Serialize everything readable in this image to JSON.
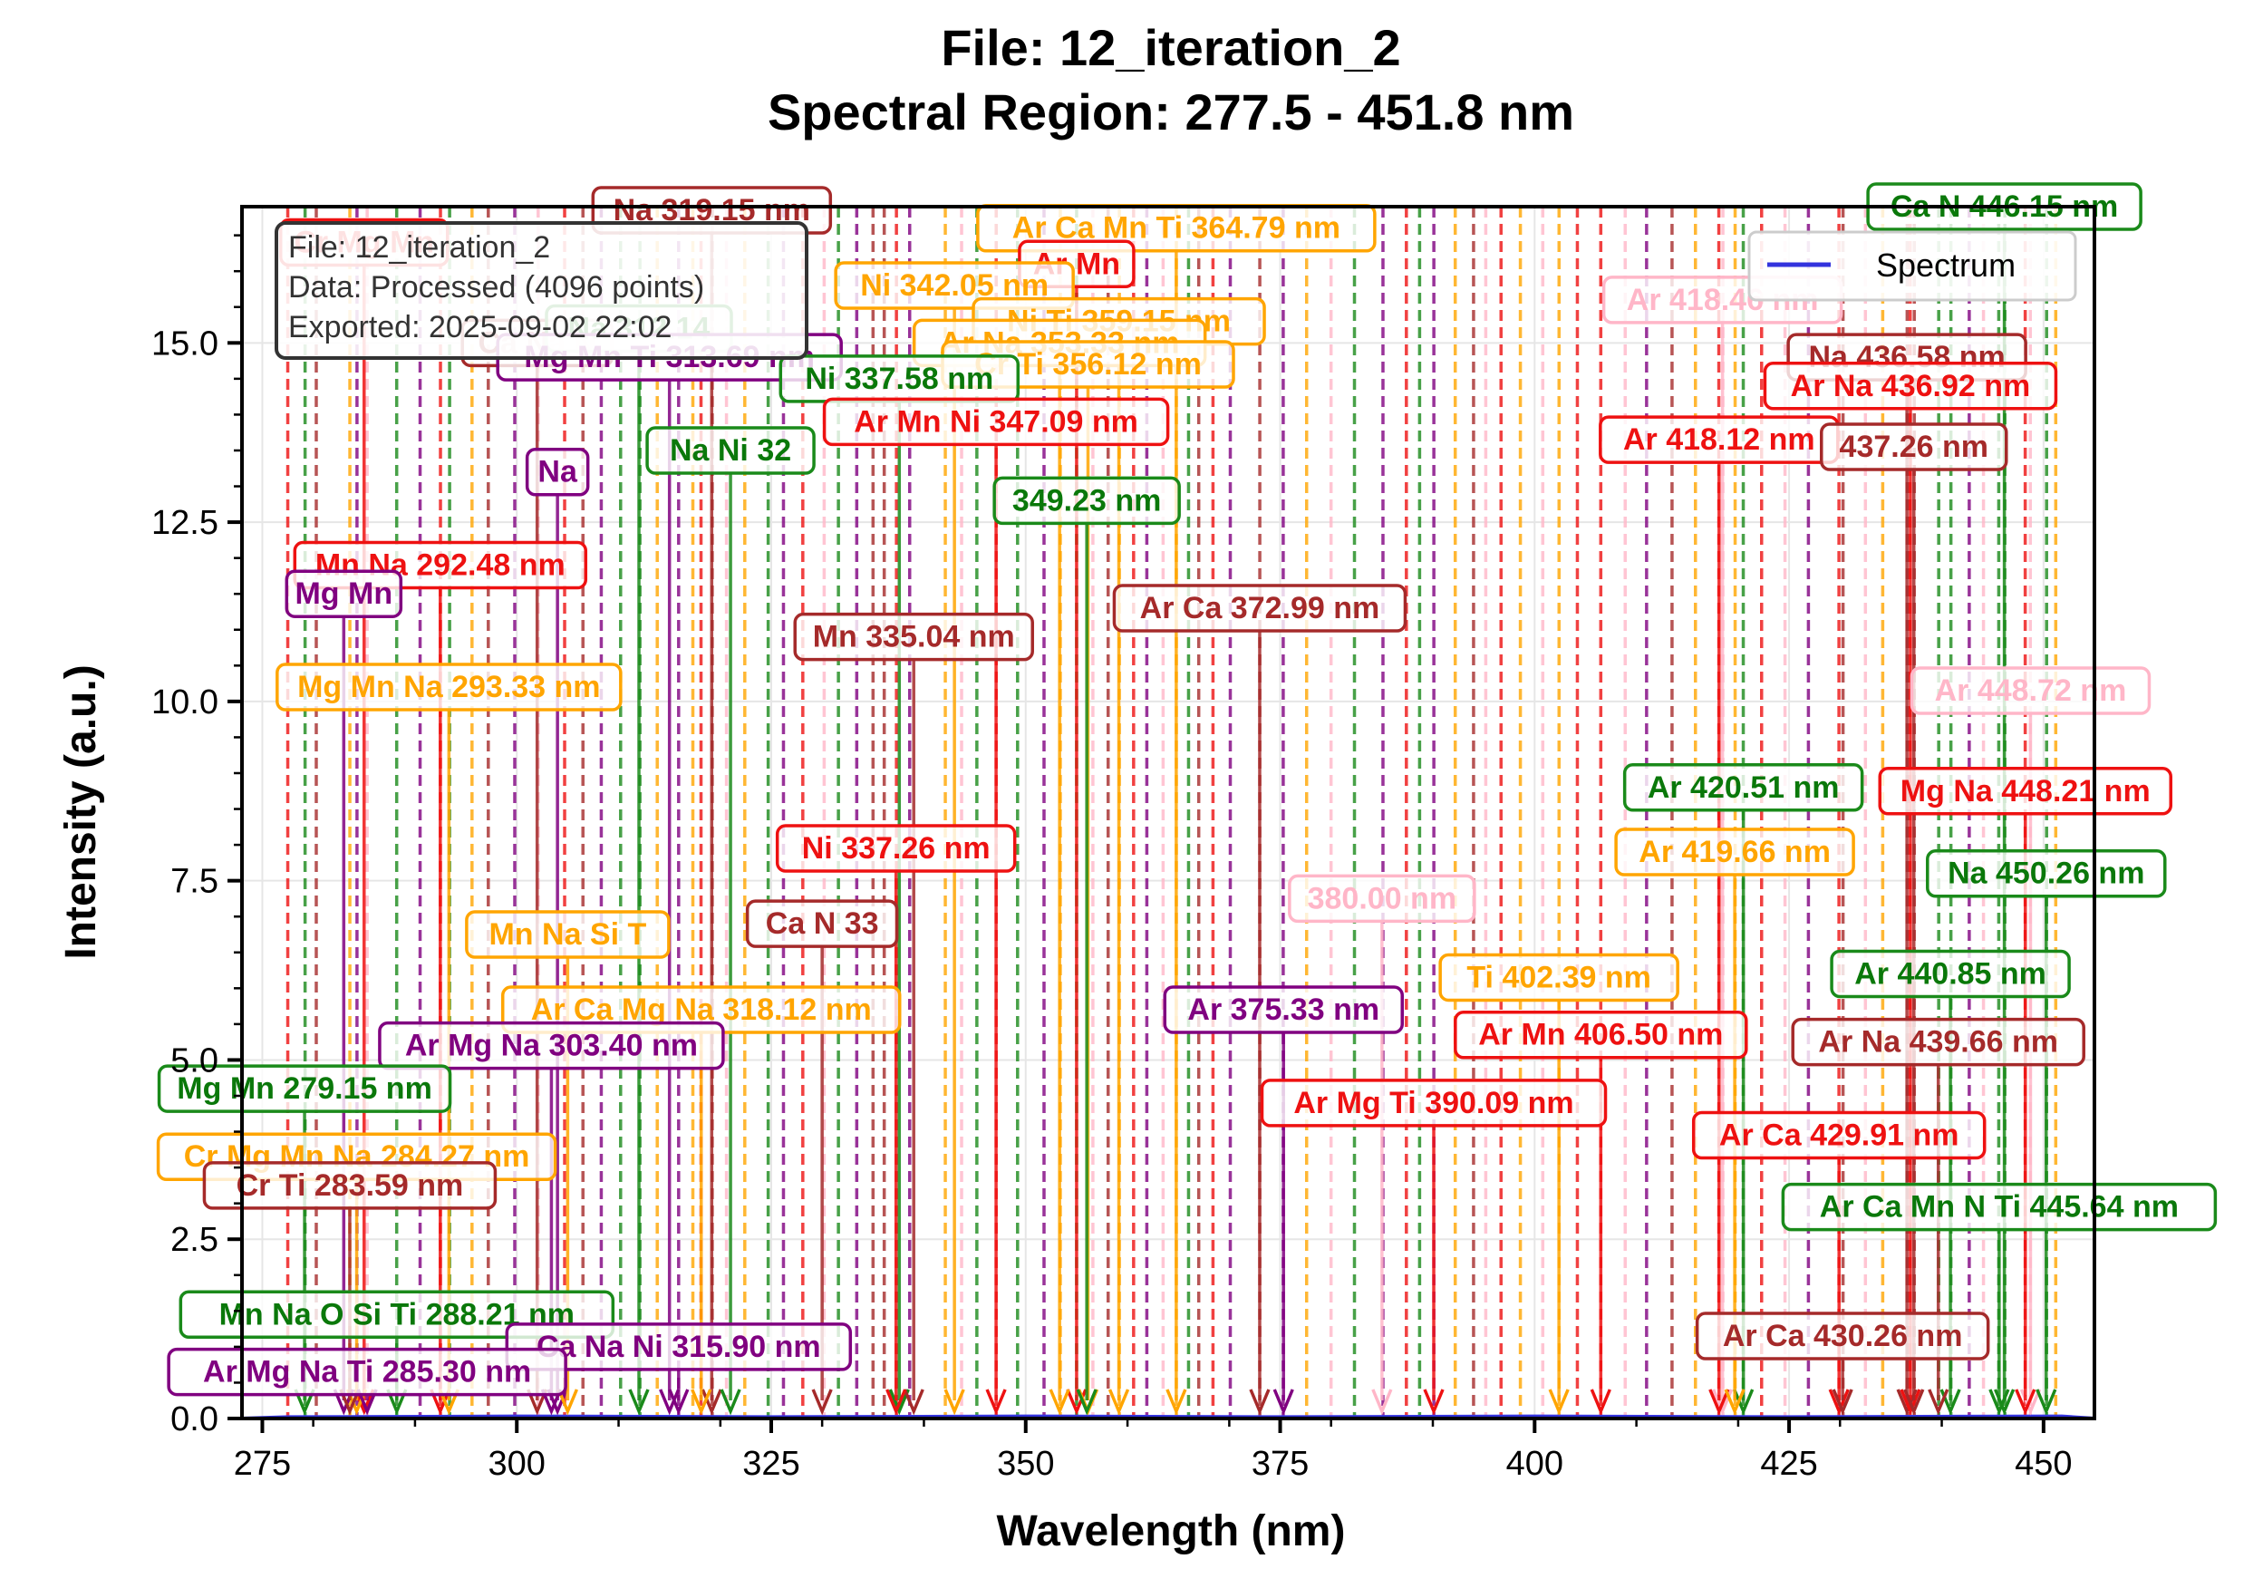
{
  "chart_data": {
    "type": "line",
    "title_line1": "File: 12_iteration_2",
    "title_line2": "Spectral Region: 277.5 - 451.8 nm",
    "xlabel": "Wavelength (nm)",
    "ylabel": "Intensity (a.u.)",
    "xlim": [
      273,
      455
    ],
    "ylim": [
      0,
      16.9
    ],
    "xticks": [
      275,
      300,
      325,
      350,
      375,
      400,
      425,
      450
    ],
    "xtick_labels": [
      "275",
      "300",
      "325",
      "350",
      "375",
      "400",
      "425",
      "450"
    ],
    "yticks": [
      0,
      2.5,
      5,
      7.5,
      10,
      12.5,
      15
    ],
    "ytick_labels": [
      "0.0",
      "2.5",
      "5.0",
      "7.5",
      "10.0",
      "12.5",
      "15.0"
    ],
    "grid": true,
    "legend": {
      "position": "top-right",
      "entries": [
        "Spectrum"
      ]
    },
    "series": [
      {
        "name": "Spectrum",
        "color": "#3333dd",
        "x": [
          273,
          277.5,
          300,
          325,
          350,
          375,
          400,
          425,
          451.8,
          455
        ],
        "y": [
          0,
          0.02,
          0.03,
          0.02,
          0.03,
          0.02,
          0.03,
          0.02,
          0.03,
          0
        ]
      }
    ],
    "info_box": {
      "line1": "File: 12_iteration_2",
      "line2": "Data: Processed (4096 points)",
      "line3": "Exported: 2025-09-02 22:02"
    },
    "peak_lines": [
      {
        "x": 277.5,
        "c": "red"
      },
      {
        "x": 279.2,
        "c": "green"
      },
      {
        "x": 280.3,
        "c": "brown"
      },
      {
        "x": 283.6,
        "c": "orange"
      },
      {
        "x": 284.3,
        "c": "purple"
      },
      {
        "x": 285.3,
        "c": "pink"
      },
      {
        "x": 288.2,
        "c": "green"
      },
      {
        "x": 290.5,
        "c": "purple"
      },
      {
        "x": 292.5,
        "c": "red"
      },
      {
        "x": 293.4,
        "c": "green"
      },
      {
        "x": 295.6,
        "c": "orange"
      },
      {
        "x": 297.2,
        "c": "brown"
      },
      {
        "x": 299.8,
        "c": "purple"
      },
      {
        "x": 302.1,
        "c": "pink"
      },
      {
        "x": 304.7,
        "c": "red"
      },
      {
        "x": 306.5,
        "c": "brown"
      },
      {
        "x": 308.3,
        "c": "purple"
      },
      {
        "x": 310.2,
        "c": "green"
      },
      {
        "x": 312.1,
        "c": "green"
      },
      {
        "x": 313.8,
        "c": "orange"
      },
      {
        "x": 315.9,
        "c": "purple"
      },
      {
        "x": 317.3,
        "c": "orange"
      },
      {
        "x": 318.1,
        "c": "red"
      },
      {
        "x": 319.2,
        "c": "brown"
      },
      {
        "x": 320.6,
        "c": "pink"
      },
      {
        "x": 322.4,
        "c": "orange"
      },
      {
        "x": 324.7,
        "c": "green"
      },
      {
        "x": 326.2,
        "c": "purple"
      },
      {
        "x": 328.1,
        "c": "red"
      },
      {
        "x": 330.2,
        "c": "pink"
      },
      {
        "x": 331.6,
        "c": "green"
      },
      {
        "x": 333.4,
        "c": "purple"
      },
      {
        "x": 335.0,
        "c": "brown"
      },
      {
        "x": 336.1,
        "c": "brown"
      },
      {
        "x": 337.3,
        "c": "red"
      },
      {
        "x": 338.6,
        "c": "purple"
      },
      {
        "x": 342.1,
        "c": "orange"
      },
      {
        "x": 343.7,
        "c": "pink"
      },
      {
        "x": 345.2,
        "c": "green"
      },
      {
        "x": 347.1,
        "c": "red"
      },
      {
        "x": 349.2,
        "c": "green"
      },
      {
        "x": 351.8,
        "c": "purple"
      },
      {
        "x": 353.4,
        "c": "orange"
      },
      {
        "x": 355.0,
        "c": "green"
      },
      {
        "x": 356.6,
        "c": "pink"
      },
      {
        "x": 358.1,
        "c": "brown"
      },
      {
        "x": 359.2,
        "c": "orange"
      },
      {
        "x": 360.6,
        "c": "red"
      },
      {
        "x": 361.9,
        "c": "purple"
      },
      {
        "x": 363.5,
        "c": "pink"
      },
      {
        "x": 364.8,
        "c": "orange"
      },
      {
        "x": 366.0,
        "c": "green"
      },
      {
        "x": 367.0,
        "c": "brown"
      },
      {
        "x": 368.4,
        "c": "red"
      },
      {
        "x": 370.1,
        "c": "purple"
      },
      {
        "x": 373.0,
        "c": "brown"
      },
      {
        "x": 375.3,
        "c": "purple"
      },
      {
        "x": 377.6,
        "c": "orange"
      },
      {
        "x": 380.0,
        "c": "pink"
      },
      {
        "x": 382.3,
        "c": "green"
      },
      {
        "x": 385.1,
        "c": "purple"
      },
      {
        "x": 387.4,
        "c": "red"
      },
      {
        "x": 388.7,
        "c": "green"
      },
      {
        "x": 390.1,
        "c": "purple"
      },
      {
        "x": 392.2,
        "c": "orange"
      },
      {
        "x": 394.0,
        "c": "brown"
      },
      {
        "x": 395.2,
        "c": "pink"
      },
      {
        "x": 396.7,
        "c": "red"
      },
      {
        "x": 398.6,
        "c": "orange"
      },
      {
        "x": 400.8,
        "c": "pink"
      },
      {
        "x": 402.4,
        "c": "orange"
      },
      {
        "x": 404.2,
        "c": "red"
      },
      {
        "x": 406.5,
        "c": "red"
      },
      {
        "x": 408.9,
        "c": "pink"
      },
      {
        "x": 411.0,
        "c": "purple"
      },
      {
        "x": 413.5,
        "c": "brown"
      },
      {
        "x": 415.8,
        "c": "orange"
      },
      {
        "x": 418.1,
        "c": "red"
      },
      {
        "x": 418.5,
        "c": "pink"
      },
      {
        "x": 419.7,
        "c": "orange"
      },
      {
        "x": 420.5,
        "c": "green"
      },
      {
        "x": 422.3,
        "c": "red"
      },
      {
        "x": 424.6,
        "c": "pink"
      },
      {
        "x": 426.9,
        "c": "purple"
      },
      {
        "x": 429.9,
        "c": "red"
      },
      {
        "x": 430.3,
        "c": "brown"
      },
      {
        "x": 432.5,
        "c": "pink"
      },
      {
        "x": 434.2,
        "c": "orange"
      },
      {
        "x": 436.6,
        "c": "brown"
      },
      {
        "x": 436.9,
        "c": "red"
      },
      {
        "x": 437.3,
        "c": "brown"
      },
      {
        "x": 439.7,
        "c": "green"
      },
      {
        "x": 440.9,
        "c": "green"
      },
      {
        "x": 442.7,
        "c": "purple"
      },
      {
        "x": 444.1,
        "c": "pink"
      },
      {
        "x": 445.6,
        "c": "green"
      },
      {
        "x": 446.2,
        "c": "green"
      },
      {
        "x": 448.2,
        "c": "red"
      },
      {
        "x": 448.7,
        "c": "pink"
      },
      {
        "x": 450.3,
        "c": "green"
      },
      {
        "x": 451.2,
        "c": "orange"
      }
    ],
    "annotations": [
      {
        "text": "Na 319.15 nm",
        "x": 319.15,
        "y": 16.85,
        "c": "brown"
      },
      {
        "text": "Ar Ca Mn Ti 364.79 nm",
        "x": 364.79,
        "y": 16.6,
        "c": "orange"
      },
      {
        "text": "Ca N 446.15 nm",
        "x": 446.15,
        "y": 16.9,
        "c": "green"
      },
      {
        "text": "Cr Mg Mn",
        "x": 285.0,
        "y": 16.4,
        "c": "red"
      },
      {
        "text": "Ar Mn",
        "x": 355.0,
        "y": 16.1,
        "c": "red"
      },
      {
        "text": "Ni 342.05 nm",
        "x": 343.0,
        "y": 15.8,
        "c": "orange"
      },
      {
        "text": "Ni Ti 359.15 nm",
        "x": 359.15,
        "y": 15.3,
        "c": "orange"
      },
      {
        "text": "Ca Na N",
        "x": 302.0,
        "y": 15.0,
        "c": "brown"
      },
      {
        "text": "Na 312.14",
        "x": 312.0,
        "y": 15.2,
        "c": "green"
      },
      {
        "text": "Mg Mn Ti 313.69 nm",
        "x": 315.0,
        "y": 14.8,
        "c": "purple"
      },
      {
        "text": "Ar Na 353.33 nm",
        "x": 353.33,
        "y": 15.0,
        "c": "orange"
      },
      {
        "text": "Cr Ti 356.12 nm",
        "x": 356.12,
        "y": 14.7,
        "c": "orange"
      },
      {
        "text": "Ni 337.58 nm",
        "x": 337.58,
        "y": 14.5,
        "c": "green"
      },
      {
        "text": "Ar Mn Ni 347.09 nm",
        "x": 347.09,
        "y": 13.9,
        "c": "red"
      },
      {
        "text": "Na Ni 32",
        "x": 321.0,
        "y": 13.5,
        "c": "green"
      },
      {
        "text": "Na",
        "x": 304.0,
        "y": 13.2,
        "c": "purple"
      },
      {
        "text": "349.23 nm",
        "x": 356.0,
        "y": 12.8,
        "c": "green"
      },
      {
        "text": "Mn Na 292.48 nm",
        "x": 292.48,
        "y": 11.9,
        "c": "red"
      },
      {
        "text": "Mg Mn",
        "x": 283.0,
        "y": 11.5,
        "c": "purple"
      },
      {
        "text": "Ar Ca 372.99 nm",
        "x": 372.99,
        "y": 11.3,
        "c": "brown"
      },
      {
        "text": "Mn 335.04 nm",
        "x": 339.0,
        "y": 10.9,
        "c": "brown"
      },
      {
        "text": "Mg Mn Na 293.33 nm",
        "x": 293.33,
        "y": 10.2,
        "c": "orange"
      },
      {
        "text": "Ar 418.46 nm",
        "x": 418.46,
        "y": 15.6,
        "c": "pink"
      },
      {
        "text": "Na 436.58 nm",
        "x": 436.58,
        "y": 14.8,
        "c": "brown"
      },
      {
        "text": "Ar Na 436.92 nm",
        "x": 436.92,
        "y": 14.4,
        "c": "red"
      },
      {
        "text": "Ar 418.12 nm",
        "x": 418.12,
        "y": 13.65,
        "c": "red"
      },
      {
        "text": "437.26 nm",
        "x": 437.26,
        "y": 13.55,
        "c": "brown"
      },
      {
        "text": "Ar 448.72 nm",
        "x": 448.72,
        "y": 10.15,
        "c": "pink"
      },
      {
        "text": "Ar 420.51 nm",
        "x": 420.51,
        "y": 8.8,
        "c": "green"
      },
      {
        "text": "Mg Na 448.21 nm",
        "x": 448.21,
        "y": 8.75,
        "c": "red"
      },
      {
        "text": "Ar 419.66 nm",
        "x": 419.66,
        "y": 7.9,
        "c": "orange"
      },
      {
        "text": "Na 450.26 nm",
        "x": 450.26,
        "y": 7.6,
        "c": "green"
      },
      {
        "text": "Ni 337.26 nm",
        "x": 337.26,
        "y": 7.95,
        "c": "red"
      },
      {
        "text": "Ca N 33",
        "x": 330.0,
        "y": 6.9,
        "c": "brown"
      },
      {
        "text": "Mn Na Si T",
        "x": 305.0,
        "y": 6.75,
        "c": "orange"
      },
      {
        "text": "380.00 nm",
        "x": 385.0,
        "y": 7.25,
        "c": "pink"
      },
      {
        "text": "Ti 402.39 nm",
        "x": 402.39,
        "y": 6.15,
        "c": "orange"
      },
      {
        "text": "Ar 440.85 nm",
        "x": 440.85,
        "y": 6.2,
        "c": "green"
      },
      {
        "text": "Ar Ca Mg Na 318.12 nm",
        "x": 318.12,
        "y": 5.7,
        "c": "orange"
      },
      {
        "text": "Ar 375.33 nm",
        "x": 375.33,
        "y": 5.7,
        "c": "purple"
      },
      {
        "text": "Ar Mn 406.50 nm",
        "x": 406.5,
        "y": 5.35,
        "c": "red"
      },
      {
        "text": "Ar Na 439.66 nm",
        "x": 439.66,
        "y": 5.25,
        "c": "brown"
      },
      {
        "text": "Ar Mg Na 303.40 nm",
        "x": 303.4,
        "y": 5.2,
        "c": "purple"
      },
      {
        "text": "Mg Mn 279.15 nm",
        "x": 279.15,
        "y": 4.6,
        "c": "green"
      },
      {
        "text": "Ar Mg Ti 390.09 nm",
        "x": 390.09,
        "y": 4.4,
        "c": "red"
      },
      {
        "text": "Cr Mg Mn Na 284.27 nm",
        "x": 284.27,
        "y": 3.65,
        "c": "orange"
      },
      {
        "text": "Ar Ca 429.91 nm",
        "x": 429.91,
        "y": 3.95,
        "c": "red"
      },
      {
        "text": "Cr Ti 283.59 nm",
        "x": 283.59,
        "y": 3.25,
        "c": "brown"
      },
      {
        "text": "Ar Ca Mn N Ti 445.64 nm",
        "x": 445.64,
        "y": 2.95,
        "c": "green"
      },
      {
        "text": "Mn Na O Si Ti 288.21 nm",
        "x": 288.21,
        "y": 1.45,
        "c": "green"
      },
      {
        "text": "Ca Na Ni 315.90 nm",
        "x": 315.9,
        "y": 1.0,
        "c": "purple"
      },
      {
        "text": "Ar Mg Na Ti 285.30 nm",
        "x": 285.3,
        "y": 0.65,
        "c": "purple"
      },
      {
        "text": "Ar Ca 430.26 nm",
        "x": 430.26,
        "y": 1.15,
        "c": "brown"
      }
    ]
  }
}
